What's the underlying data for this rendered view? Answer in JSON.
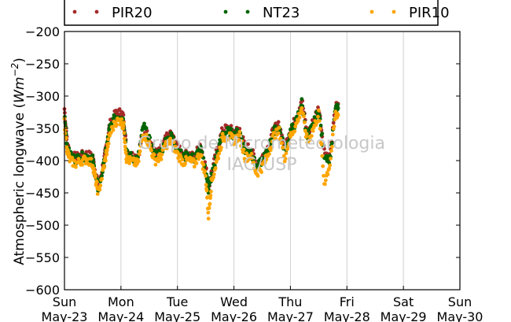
{
  "chart_data": {
    "type": "scatter",
    "title": "",
    "ylabel_text": "Atmospheric longwave (",
    "ylabel_unit": "Wm",
    "ylabel_exp": "−2",
    "ylabel_close": ")",
    "ylim": [
      -600,
      -200
    ],
    "yticks": [
      -200,
      -250,
      -300,
      -350,
      -400,
      -450,
      -500,
      -550,
      -600
    ],
    "ytick_labels": [
      "−200",
      "−250",
      "−300",
      "−350",
      "−400",
      "−450",
      "−500",
      "−550",
      "−600"
    ],
    "xlim": [
      "2013-05-23",
      "2013-05-30"
    ],
    "xticks": [
      {
        "day": "Sun",
        "date": "May-23"
      },
      {
        "day": "Mon",
        "date": "May-24"
      },
      {
        "day": "Tue",
        "date": "May-25"
      },
      {
        "day": "Wed",
        "date": "May-26"
      },
      {
        "day": "Thu",
        "date": "May-27"
      },
      {
        "day": "Fri",
        "date": "May-28"
      },
      {
        "day": "Sat",
        "date": "May-29"
      },
      {
        "day": "Sun",
        "date": "May-30"
      }
    ],
    "grid": "vertical",
    "legend_position": "top",
    "watermark_line1": "Grupo de Micrometeorologia",
    "watermark_line2": "IAG/USP",
    "series": [
      {
        "name": "PIR20",
        "color": "#a52a2a",
        "x": [
          0.0,
          0.05,
          0.1,
          0.2,
          0.3,
          0.4,
          0.5,
          0.55,
          0.6,
          0.7,
          0.75,
          0.8,
          0.9,
          1.0,
          1.05,
          1.1,
          1.2,
          1.3,
          1.4,
          1.5,
          1.6,
          1.7,
          1.8,
          1.9,
          2.0,
          2.1,
          2.2,
          2.3,
          2.4,
          2.5,
          2.55,
          2.6,
          2.7,
          2.8,
          2.9,
          3.0,
          3.1,
          3.2,
          3.3,
          3.4,
          3.5,
          3.6,
          3.7,
          3.8,
          3.9,
          4.0,
          4.1,
          4.2,
          4.3,
          4.4,
          4.5,
          4.6,
          4.7,
          4.8
        ],
        "y": [
          -320,
          -375,
          -390,
          -395,
          -392,
          -390,
          -395,
          -420,
          -440,
          -400,
          -375,
          -345,
          -328,
          -325,
          -335,
          -385,
          -392,
          -395,
          -350,
          -365,
          -390,
          -385,
          -365,
          -360,
          -380,
          -392,
          -390,
          -395,
          -375,
          -410,
          -440,
          -420,
          -385,
          -352,
          -350,
          -355,
          -352,
          -380,
          -380,
          -408,
          -395,
          -380,
          -352,
          -345,
          -380,
          -352,
          -335,
          -305,
          -360,
          -340,
          -318,
          -385,
          -395,
          -316
        ]
      },
      {
        "name": "NT23",
        "color": "#006400",
        "x": [
          0.0,
          0.05,
          0.1,
          0.2,
          0.3,
          0.4,
          0.5,
          0.55,
          0.6,
          0.7,
          0.75,
          0.8,
          0.9,
          1.0,
          1.05,
          1.1,
          1.2,
          1.3,
          1.4,
          1.5,
          1.6,
          1.7,
          1.8,
          1.9,
          2.0,
          2.1,
          2.2,
          2.3,
          2.4,
          2.5,
          2.55,
          2.6,
          2.7,
          2.8,
          2.9,
          3.0,
          3.1,
          3.2,
          3.3,
          3.4,
          3.5,
          3.6,
          3.7,
          3.8,
          3.9,
          4.0,
          4.1,
          4.2,
          4.3,
          4.4,
          4.5,
          4.6,
          4.7,
          4.8
        ],
        "y": [
          -330,
          -380,
          -392,
          -398,
          -394,
          -392,
          -398,
          -425,
          -445,
          -405,
          -378,
          -350,
          -332,
          -330,
          -340,
          -390,
          -395,
          -398,
          -345,
          -368,
          -392,
          -388,
          -368,
          -362,
          -382,
          -395,
          -392,
          -398,
          -380,
          -415,
          -445,
          -425,
          -390,
          -358,
          -355,
          -360,
          -355,
          -385,
          -385,
          -412,
          -400,
          -385,
          -355,
          -348,
          -385,
          -355,
          -340,
          -310,
          -365,
          -345,
          -322,
          -390,
          -398,
          -320
        ]
      },
      {
        "name": "PIR10",
        "color": "#ffa500",
        "x": [
          0.0,
          0.05,
          0.1,
          0.2,
          0.3,
          0.4,
          0.5,
          0.55,
          0.6,
          0.7,
          0.75,
          0.8,
          0.9,
          1.0,
          1.05,
          1.1,
          1.2,
          1.3,
          1.4,
          1.5,
          1.6,
          1.7,
          1.8,
          1.9,
          2.0,
          2.1,
          2.2,
          2.3,
          2.4,
          2.5,
          2.55,
          2.6,
          2.7,
          2.8,
          2.9,
          3.0,
          3.1,
          3.2,
          3.3,
          3.4,
          3.5,
          3.6,
          3.7,
          3.8,
          3.9,
          4.0,
          4.1,
          4.2,
          4.3,
          4.4,
          4.5,
          4.6,
          4.7,
          4.8
        ],
        "y": [
          -340,
          -385,
          -400,
          -405,
          -400,
          -398,
          -405,
          -430,
          -450,
          -410,
          -385,
          -360,
          -340,
          -338,
          -348,
          -398,
          -402,
          -405,
          -355,
          -375,
          -400,
          -395,
          -375,
          -370,
          -390,
          -402,
          -400,
          -405,
          -388,
          -425,
          -485,
          -435,
          -400,
          -365,
          -362,
          -368,
          -362,
          -395,
          -392,
          -420,
          -410,
          -392,
          -362,
          -355,
          -395,
          -362,
          -345,
          -318,
          -372,
          -352,
          -328,
          -435,
          -405,
          -328
        ]
      }
    ]
  }
}
